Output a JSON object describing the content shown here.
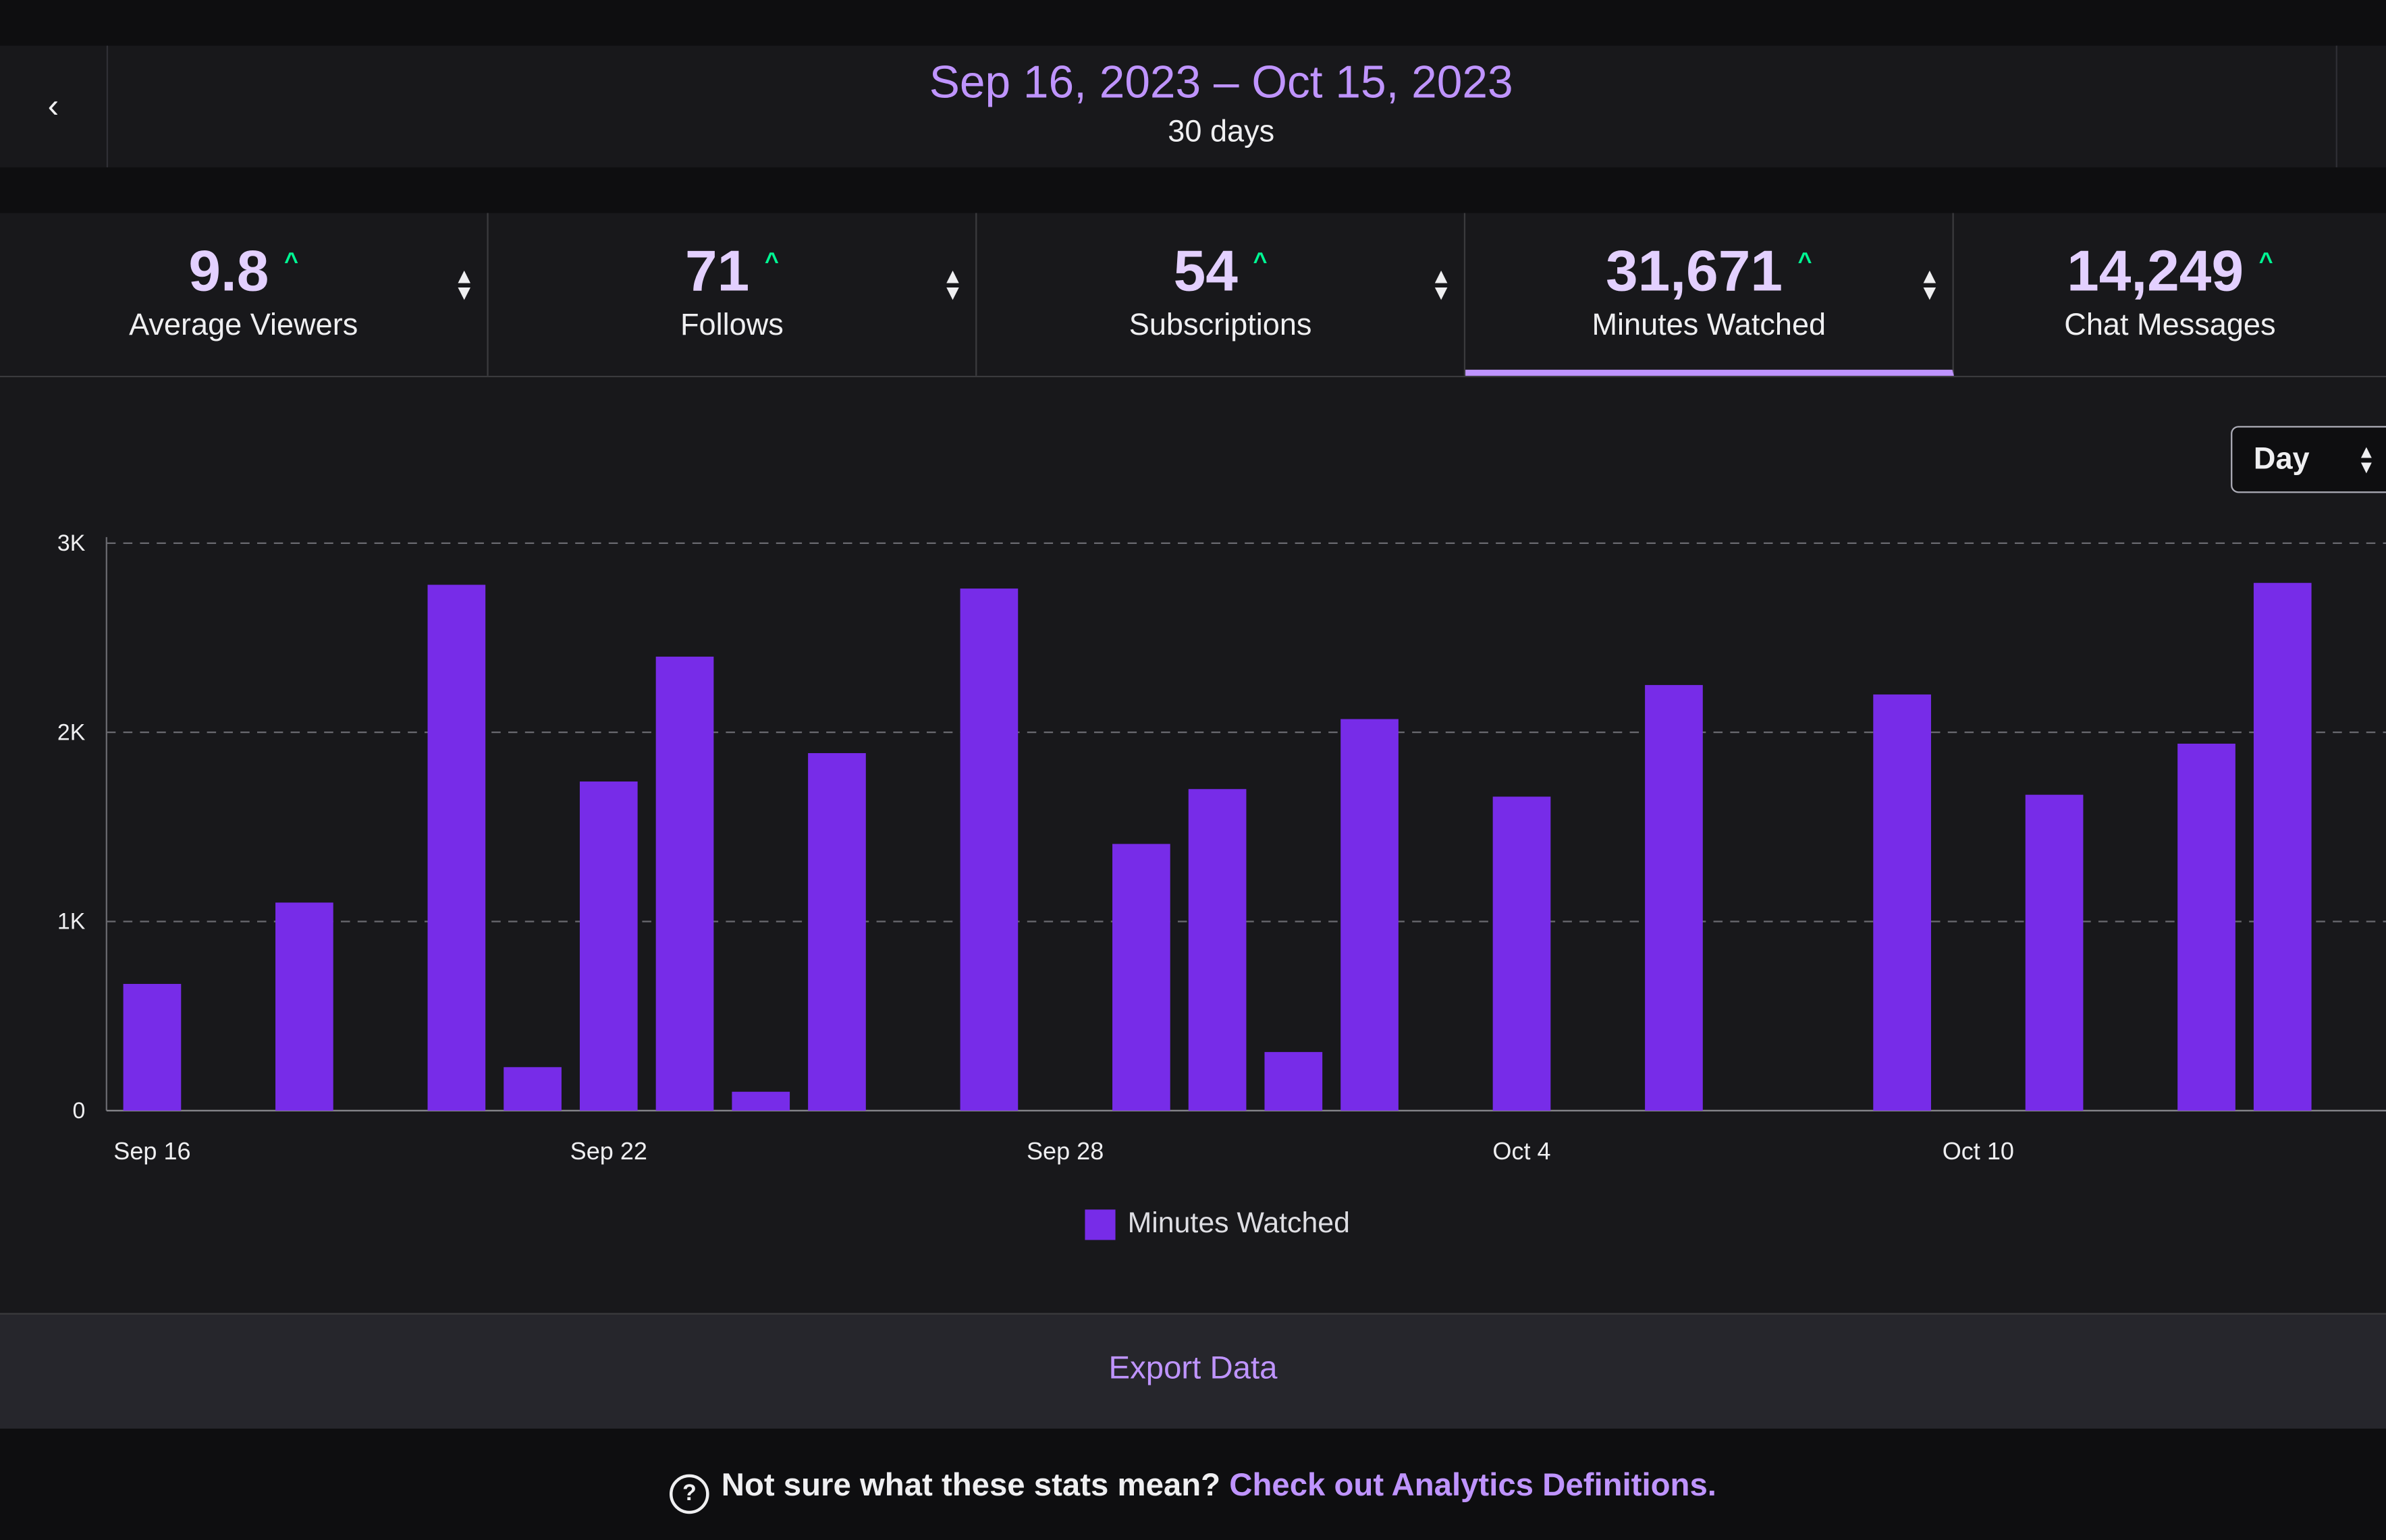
{
  "header": {
    "back_icon": "chevron-left-icon",
    "date_range": "Sep 16, 2023 – Oct 15, 2023",
    "duration": "30 days"
  },
  "stats": [
    {
      "value": "9.8",
      "label": "Average Viewers",
      "trend": "up"
    },
    {
      "value": "71",
      "label": "Follows",
      "trend": "up"
    },
    {
      "value": "54",
      "label": "Subscriptions",
      "trend": "up"
    },
    {
      "value": "31,671",
      "label": "Minutes Watched",
      "trend": "up",
      "active": true
    },
    {
      "value": "14,249",
      "label": "Chat Messages",
      "trend": "up"
    }
  ],
  "trend_symbol": "^",
  "granularity": {
    "selected": "Day"
  },
  "colors": {
    "bar": "#772ce8",
    "accent": "#bf94ff",
    "trend_up": "#00f593",
    "background": "#18181b"
  },
  "chart_data": {
    "type": "bar",
    "categories": [
      "Sep 16",
      "Sep 17",
      "Sep 18",
      "Sep 19",
      "Sep 20",
      "Sep 21",
      "Sep 22",
      "Sep 23",
      "Sep 24",
      "Sep 25",
      "Sep 26",
      "Sep 27",
      "Sep 28",
      "Sep 29",
      "Sep 30",
      "Oct 1",
      "Oct 2",
      "Oct 3",
      "Oct 4",
      "Oct 5",
      "Oct 6",
      "Oct 7",
      "Oct 8",
      "Oct 9",
      "Oct 10",
      "Oct 11",
      "Oct 12",
      "Oct 13",
      "Oct 14",
      "Oct 15"
    ],
    "series": [
      {
        "name": "Minutes Watched",
        "values": [
          670,
          0,
          1100,
          0,
          2780,
          230,
          1740,
          2400,
          100,
          1890,
          0,
          2760,
          0,
          1410,
          1700,
          310,
          2070,
          0,
          1660,
          0,
          2250,
          0,
          0,
          2200,
          0,
          1670,
          0,
          1940,
          2790,
          0
        ]
      }
    ],
    "x_tick_labels": [
      "Sep 16",
      "Sep 22",
      "Sep 28",
      "Oct 4",
      "Oct 10"
    ],
    "y_tick_labels": [
      "0",
      "1K",
      "2K",
      "3K"
    ],
    "y_ticks": [
      0,
      1000,
      2000,
      3000
    ],
    "ylim": [
      0,
      3000
    ],
    "grid": "horizontal dashed",
    "legend": "bottom-center"
  },
  "export_label": "Export Data",
  "help": {
    "icon": "question-circle-icon",
    "text": "Not sure what these stats mean?",
    "link": "Check out Analytics Definitions."
  }
}
